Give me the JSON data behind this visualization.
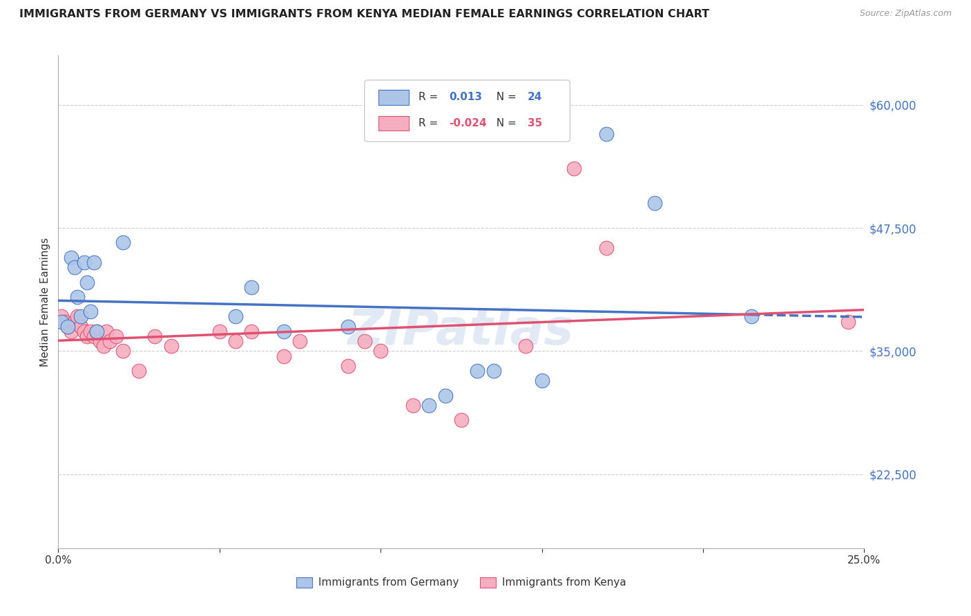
{
  "title": "IMMIGRANTS FROM GERMANY VS IMMIGRANTS FROM KENYA MEDIAN FEMALE EARNINGS CORRELATION CHART",
  "source": "Source: ZipAtlas.com",
  "ylabel": "Median Female Earnings",
  "x_min": 0.0,
  "x_max": 0.25,
  "y_min": 15000,
  "y_max": 65000,
  "yticks": [
    22500,
    35000,
    47500,
    60000
  ],
  "ytick_labels": [
    "$22,500",
    "$35,000",
    "$47,500",
    "$60,000"
  ],
  "xticks": [
    0.0,
    0.05,
    0.1,
    0.15,
    0.2,
    0.25
  ],
  "xtick_labels": [
    "0.0%",
    "",
    "",
    "",
    "",
    "25.0%"
  ],
  "germany_R": "0.013",
  "germany_N": "24",
  "kenya_R": "-0.024",
  "kenya_N": "35",
  "germany_color": "#adc6e8",
  "kenya_color": "#f5aec0",
  "germany_line_color": "#4472c4",
  "kenya_line_color": "#e05070",
  "watermark": "ZIPatlas",
  "germany_x": [
    0.001,
    0.003,
    0.004,
    0.005,
    0.006,
    0.007,
    0.008,
    0.009,
    0.01,
    0.011,
    0.012,
    0.02,
    0.055,
    0.06,
    0.07,
    0.09,
    0.115,
    0.12,
    0.13,
    0.135,
    0.15,
    0.17,
    0.185,
    0.215
  ],
  "germany_y": [
    38000,
    37500,
    44500,
    43500,
    40500,
    38500,
    44000,
    42000,
    39000,
    44000,
    37000,
    46000,
    38500,
    41500,
    37000,
    37500,
    29500,
    30500,
    33000,
    33000,
    32000,
    57000,
    50000,
    38500
  ],
  "kenya_x": [
    0.001,
    0.002,
    0.003,
    0.004,
    0.005,
    0.006,
    0.007,
    0.008,
    0.009,
    0.01,
    0.011,
    0.012,
    0.013,
    0.014,
    0.015,
    0.016,
    0.018,
    0.02,
    0.025,
    0.03,
    0.035,
    0.05,
    0.055,
    0.06,
    0.07,
    0.075,
    0.09,
    0.095,
    0.1,
    0.11,
    0.125,
    0.145,
    0.16,
    0.17,
    0.245
  ],
  "kenya_y": [
    38500,
    38000,
    37500,
    37000,
    38000,
    38500,
    37500,
    37000,
    36500,
    37000,
    36500,
    37000,
    36000,
    35500,
    37000,
    36000,
    36500,
    35000,
    33000,
    36500,
    35500,
    37000,
    36000,
    37000,
    34500,
    36000,
    33500,
    36000,
    35000,
    29500,
    28000,
    35500,
    53500,
    45500,
    38000
  ]
}
